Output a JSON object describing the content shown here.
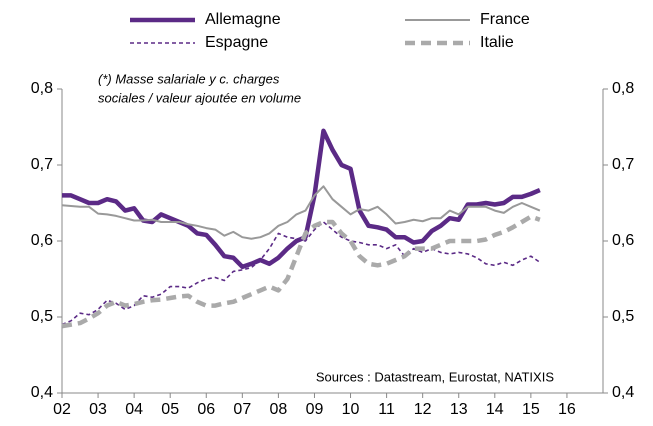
{
  "chart_data": {
    "type": "line",
    "annotations": [
      "(*) Masse salariale y c. charges",
      "sociales / valeur ajoutée en volume",
      "Sources : Datastream, Eurostat, NATIXIS"
    ],
    "x": [
      2002,
      2002.25,
      2002.5,
      2002.75,
      2003,
      2003.25,
      2003.5,
      2003.75,
      2004,
      2004.25,
      2004.5,
      2004.75,
      2005,
      2005.25,
      2005.5,
      2005.75,
      2006,
      2006.25,
      2006.5,
      2006.75,
      2007,
      2007.25,
      2007.5,
      2007.75,
      2008,
      2008.25,
      2008.5,
      2008.75,
      2009,
      2009.25,
      2009.5,
      2009.75,
      2010,
      2010.25,
      2010.5,
      2010.75,
      2011,
      2011.25,
      2011.5,
      2011.75,
      2012,
      2012.25,
      2012.5,
      2012.75,
      2013,
      2013.25,
      2013.5,
      2013.75,
      2014,
      2014.25,
      2014.5,
      2014.75,
      2015,
      2015.25
    ],
    "series": [
      {
        "name": "Allemagne",
        "color": "#5b2a86",
        "style": "solid-thick",
        "values": [
          0.66,
          0.66,
          0.655,
          0.65,
          0.65,
          0.655,
          0.652,
          0.64,
          0.643,
          0.627,
          0.625,
          0.635,
          0.63,
          0.625,
          0.62,
          0.61,
          0.608,
          0.595,
          0.58,
          0.578,
          0.566,
          0.57,
          0.575,
          0.57,
          0.578,
          0.59,
          0.6,
          0.605,
          0.66,
          0.745,
          0.72,
          0.7,
          0.695,
          0.64,
          0.62,
          0.618,
          0.615,
          0.605,
          0.605,
          0.598,
          0.6,
          0.613,
          0.62,
          0.63,
          0.628,
          0.648,
          0.648,
          0.65,
          0.648,
          0.65,
          0.658,
          0.658,
          0.662,
          0.667
        ]
      },
      {
        "name": "France",
        "color": "#999999",
        "style": "solid-thin",
        "values": [
          0.647,
          0.646,
          0.645,
          0.645,
          0.636,
          0.635,
          0.633,
          0.63,
          0.627,
          0.627,
          0.628,
          0.625,
          0.625,
          0.625,
          0.622,
          0.62,
          0.617,
          0.615,
          0.607,
          0.612,
          0.605,
          0.603,
          0.605,
          0.61,
          0.62,
          0.625,
          0.635,
          0.64,
          0.66,
          0.672,
          0.655,
          0.645,
          0.635,
          0.642,
          0.64,
          0.645,
          0.635,
          0.623,
          0.625,
          0.628,
          0.626,
          0.63,
          0.63,
          0.64,
          0.635,
          0.645,
          0.645,
          0.645,
          0.64,
          0.637,
          0.645,
          0.65,
          0.645,
          0.64
        ]
      },
      {
        "name": "Espagne",
        "color": "#5b2a86",
        "style": "dashed-thin",
        "values": [
          0.49,
          0.495,
          0.505,
          0.503,
          0.51,
          0.522,
          0.518,
          0.51,
          0.515,
          0.528,
          0.526,
          0.53,
          0.54,
          0.54,
          0.538,
          0.545,
          0.55,
          0.552,
          0.548,
          0.56,
          0.562,
          0.565,
          0.575,
          0.59,
          0.61,
          0.605,
          0.603,
          0.6,
          0.615,
          0.625,
          0.615,
          0.605,
          0.6,
          0.598,
          0.595,
          0.595,
          0.59,
          0.595,
          0.58,
          0.59,
          0.585,
          0.59,
          0.585,
          0.583,
          0.585,
          0.583,
          0.578,
          0.57,
          0.568,
          0.572,
          0.568,
          0.575,
          0.58,
          0.572
        ]
      },
      {
        "name": "Italie",
        "color": "#aaaaaa",
        "style": "dashed-thick",
        "values": [
          0.488,
          0.49,
          0.492,
          0.498,
          0.505,
          0.515,
          0.52,
          0.515,
          0.517,
          0.52,
          0.522,
          0.523,
          0.525,
          0.527,
          0.528,
          0.52,
          0.515,
          0.515,
          0.518,
          0.52,
          0.525,
          0.53,
          0.535,
          0.54,
          0.535,
          0.55,
          0.58,
          0.61,
          0.62,
          0.625,
          0.625,
          0.61,
          0.6,
          0.58,
          0.57,
          0.568,
          0.57,
          0.575,
          0.58,
          0.59,
          0.59,
          0.59,
          0.595,
          0.6,
          0.6,
          0.6,
          0.6,
          0.602,
          0.608,
          0.612,
          0.618,
          0.625,
          0.632,
          0.628
        ]
      }
    ],
    "xlim": [
      2002,
      2017
    ],
    "xticks": [
      {
        "value": 2002,
        "label": "02"
      },
      {
        "value": 2003,
        "label": "03"
      },
      {
        "value": 2004,
        "label": "04"
      },
      {
        "value": 2005,
        "label": "05"
      },
      {
        "value": 2006,
        "label": "06"
      },
      {
        "value": 2007,
        "label": "07"
      },
      {
        "value": 2008,
        "label": "08"
      },
      {
        "value": 2009,
        "label": "09"
      },
      {
        "value": 2010,
        "label": "10"
      },
      {
        "value": 2011,
        "label": "11"
      },
      {
        "value": 2012,
        "label": "12"
      },
      {
        "value": 2013,
        "label": "13"
      },
      {
        "value": 2014,
        "label": "14"
      },
      {
        "value": 2015,
        "label": "15"
      },
      {
        "value": 2016,
        "label": "16"
      }
    ],
    "ylim": [
      0.4,
      0.8
    ],
    "yticks": [
      {
        "value": 0.4,
        "label": "0,4"
      },
      {
        "value": 0.5,
        "label": "0,5"
      },
      {
        "value": 0.6,
        "label": "0,6"
      },
      {
        "value": 0.7,
        "label": "0,7"
      },
      {
        "value": 0.8,
        "label": "0,8"
      }
    ],
    "y2lim": [
      0.4,
      0.8
    ],
    "y2ticks": [
      {
        "value": 0.4,
        "label": "0,4"
      },
      {
        "value": 0.5,
        "label": "0,5"
      },
      {
        "value": 0.6,
        "label": "0,6"
      },
      {
        "value": 0.7,
        "label": "0,7"
      },
      {
        "value": 0.8,
        "label": "0,8"
      }
    ],
    "legend": "top",
    "grid": false
  }
}
